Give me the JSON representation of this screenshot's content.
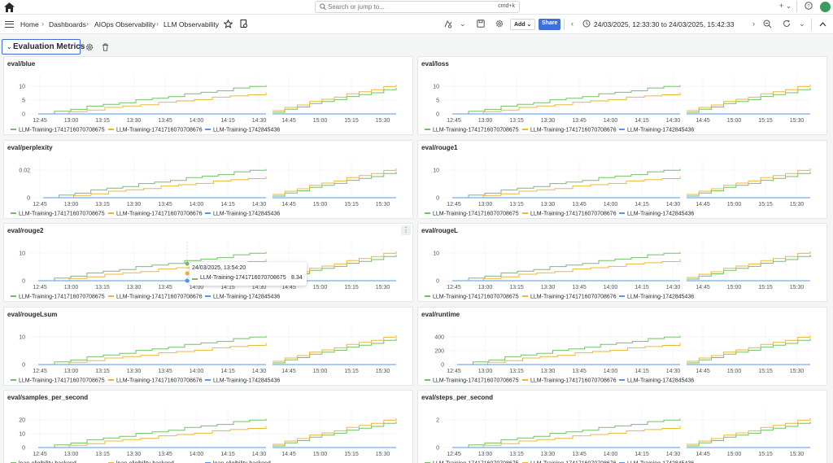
{
  "topbar": {
    "search_placeholder": "Search or jump to...",
    "search_shortcut": "cmd+k",
    "add_menu_label": "+ ⌄"
  },
  "breadcrumb": {
    "home": "Home",
    "dashboards": "Dashboards",
    "folder": "AIOps Observability",
    "dashboard": "LLM Observability"
  },
  "toolbar": {
    "add_label": "Add ⌄",
    "share_label": "Share",
    "time_range": "24/03/2025, 12:33:30 to 24/03/2025, 15:42:33"
  },
  "row": {
    "title": "Evaluation Metrics"
  },
  "colors": {
    "green": "#73bf69",
    "yellow": "#eab839",
    "blue": "#5794f2",
    "accent": "#3d71d9"
  },
  "x_ticks_left": [
    "12:45",
    "13:00",
    "13:15",
    "13:30",
    "13:45",
    "14:00",
    "14:15",
    "14:30"
  ],
  "x_ticks_right": [
    "14:45",
    "15:00",
    "15:15",
    "15:30"
  ],
  "panels": [
    {
      "title": "eval/blue",
      "y_ticks": [
        "10",
        "5",
        "0"
      ],
      "legend": [
        "LLM-Training-1741716070708675",
        "LLM-Training-1741716070708676",
        "LLM-Training-1742845436"
      ]
    },
    {
      "title": "eval/loss",
      "y_ticks": [
        "10",
        "5",
        "0"
      ],
      "legend": [
        "LLM-Training-1741716070708675",
        "LLM-Training-1741716070708676",
        "LLM-Training-1742845436"
      ]
    },
    {
      "title": "eval/perplexity",
      "y_ticks": [
        "0.02",
        "0"
      ],
      "legend": [
        "LLM-Training-1741716070708675",
        "LLM-Training-1741716070708676",
        "LLM-Training-1742845436"
      ]
    },
    {
      "title": "eval/rouge1",
      "y_ticks": [
        "10",
        "0"
      ],
      "legend": [
        "LLM-Training-1741716070708675",
        "LLM-Training-1741716070708676",
        "LLM-Training-1742845436"
      ]
    },
    {
      "title": "eval/rouge2",
      "y_ticks": [
        "10",
        "0"
      ],
      "legend": [
        "LLM-Training-1741716070708675",
        "LLM-Training-1741716070708676",
        "LLM-Training-1742845436"
      ]
    },
    {
      "title": "eval/rougeL",
      "y_ticks": [
        "10",
        "0"
      ],
      "legend": [
        "LLM-Training-1741716070708675",
        "LLM-Training-1741716070708676",
        "LLM-Training-1742845436"
      ]
    },
    {
      "title": "eval/rougeLsum",
      "y_ticks": [
        "10",
        "0"
      ],
      "legend": [
        "LLM-Training-1741716070708675",
        "LLM-Training-1741716070708676",
        "LLM-Training-1742845436"
      ]
    },
    {
      "title": "eval/runtime",
      "y_ticks": [
        "400",
        "200",
        "0"
      ],
      "legend": [
        "LLM-Training-1741716070708675",
        "LLM-Training-1741716070708676",
        "LLM-Training-1742845436"
      ]
    },
    {
      "title": "eval/samples_per_second",
      "y_ticks": [
        "20",
        "10",
        "0"
      ],
      "legend": [
        "loan-eligibility-backend",
        "loan-eligibility-backend",
        "loan-eligibility-backend"
      ]
    },
    {
      "title": "eval/steps_per_second",
      "y_ticks": [
        "2",
        "0"
      ],
      "legend": [
        "LLM-Training-1741716070708675",
        "LLM-Training-1741716070708676",
        "LLM-Training-1742845436"
      ]
    }
  ],
  "tooltip": {
    "time": "24/03/2025, 13:54:20",
    "series": "LLM-Training-1741716070708675",
    "value": "8.34"
  }
}
